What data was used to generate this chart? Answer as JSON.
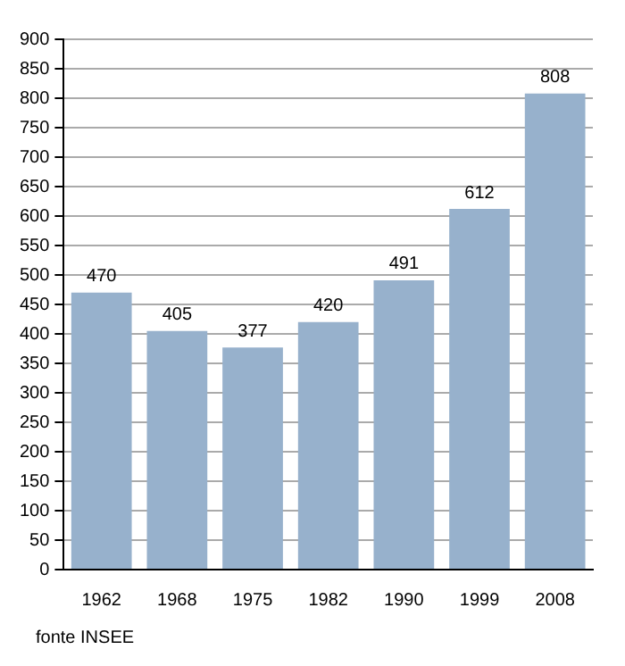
{
  "chart_data": {
    "type": "bar",
    "categories": [
      "1962",
      "1968",
      "1975",
      "1982",
      "1990",
      "1999",
      "2008"
    ],
    "values": [
      470,
      405,
      377,
      420,
      491,
      612,
      808
    ],
    "color": "#97b1cc",
    "ylim": [
      0,
      900
    ],
    "yticks": [
      0,
      50,
      100,
      150,
      200,
      250,
      300,
      350,
      400,
      450,
      500,
      550,
      600,
      650,
      700,
      750,
      800,
      850,
      900
    ],
    "grid": "y",
    "data_labels": true,
    "annotations": [
      "fonte INSEE"
    ]
  }
}
